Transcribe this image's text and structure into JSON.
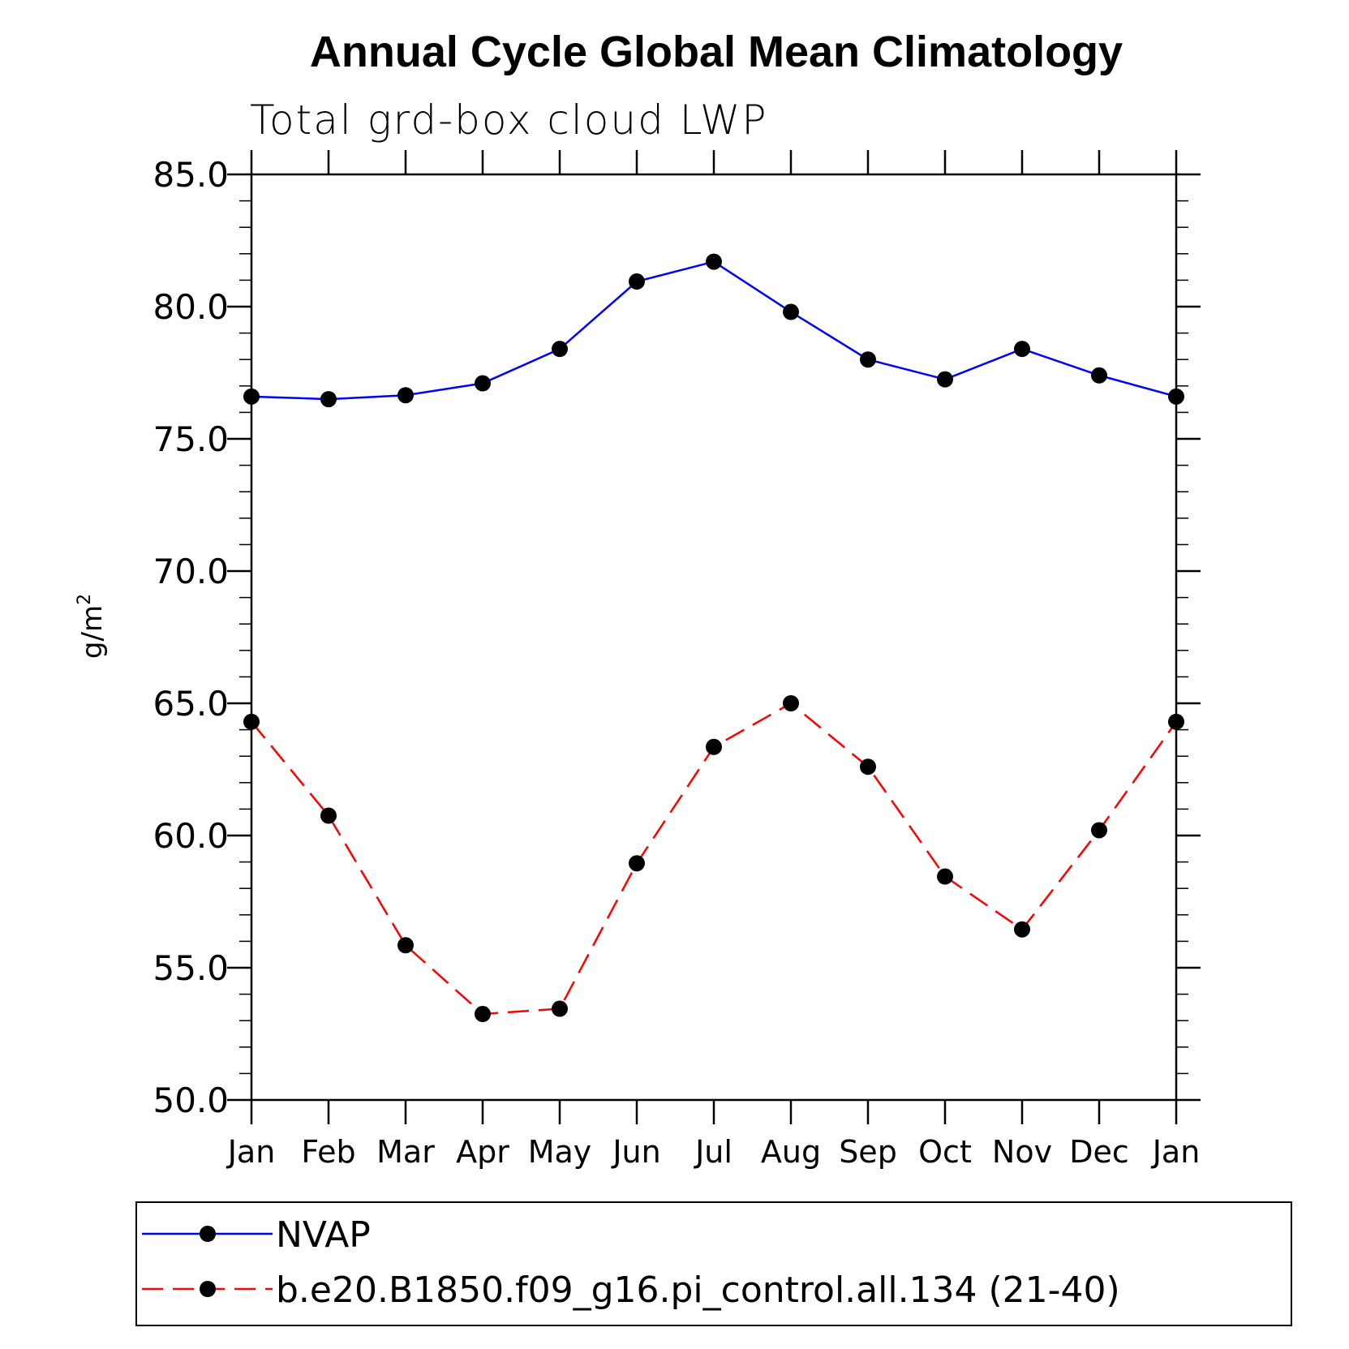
{
  "chart_data": {
    "type": "line",
    "title": "Annual Cycle Global Mean Climatology",
    "subtitle": "Total grd-box cloud LWP",
    "xlabel": "",
    "ylabel": "g/m",
    "ylabel_superscript": "2",
    "categories": [
      "Jan",
      "Feb",
      "Mar",
      "Apr",
      "May",
      "Jun",
      "Jul",
      "Aug",
      "Sep",
      "Oct",
      "Nov",
      "Dec",
      "Jan"
    ],
    "ylim": [
      50.0,
      85.0
    ],
    "yticks": [
      "50.0",
      "55.0",
      "60.0",
      "65.0",
      "70.0",
      "75.0",
      "80.0",
      "85.0"
    ],
    "grid": false,
    "legend_position": "bottom",
    "series": [
      {
        "name": "NVAP",
        "color": "#0000ff",
        "dash": "solid",
        "marker": "filled-circle",
        "values": [
          76.6,
          76.5,
          76.65,
          77.1,
          78.4,
          80.95,
          81.7,
          79.8,
          78.0,
          77.25,
          78.4,
          77.4,
          76.6
        ]
      },
      {
        "name": "b.e20.B1850.f09_g16.pi_control.all.134 (21-40)",
        "color": "#ff0000",
        "dash": "dashed",
        "marker": "filled-circle",
        "values": [
          64.3,
          60.75,
          55.85,
          53.25,
          53.45,
          58.95,
          63.35,
          65.0,
          62.6,
          58.45,
          56.45,
          60.2,
          64.3
        ]
      }
    ]
  }
}
